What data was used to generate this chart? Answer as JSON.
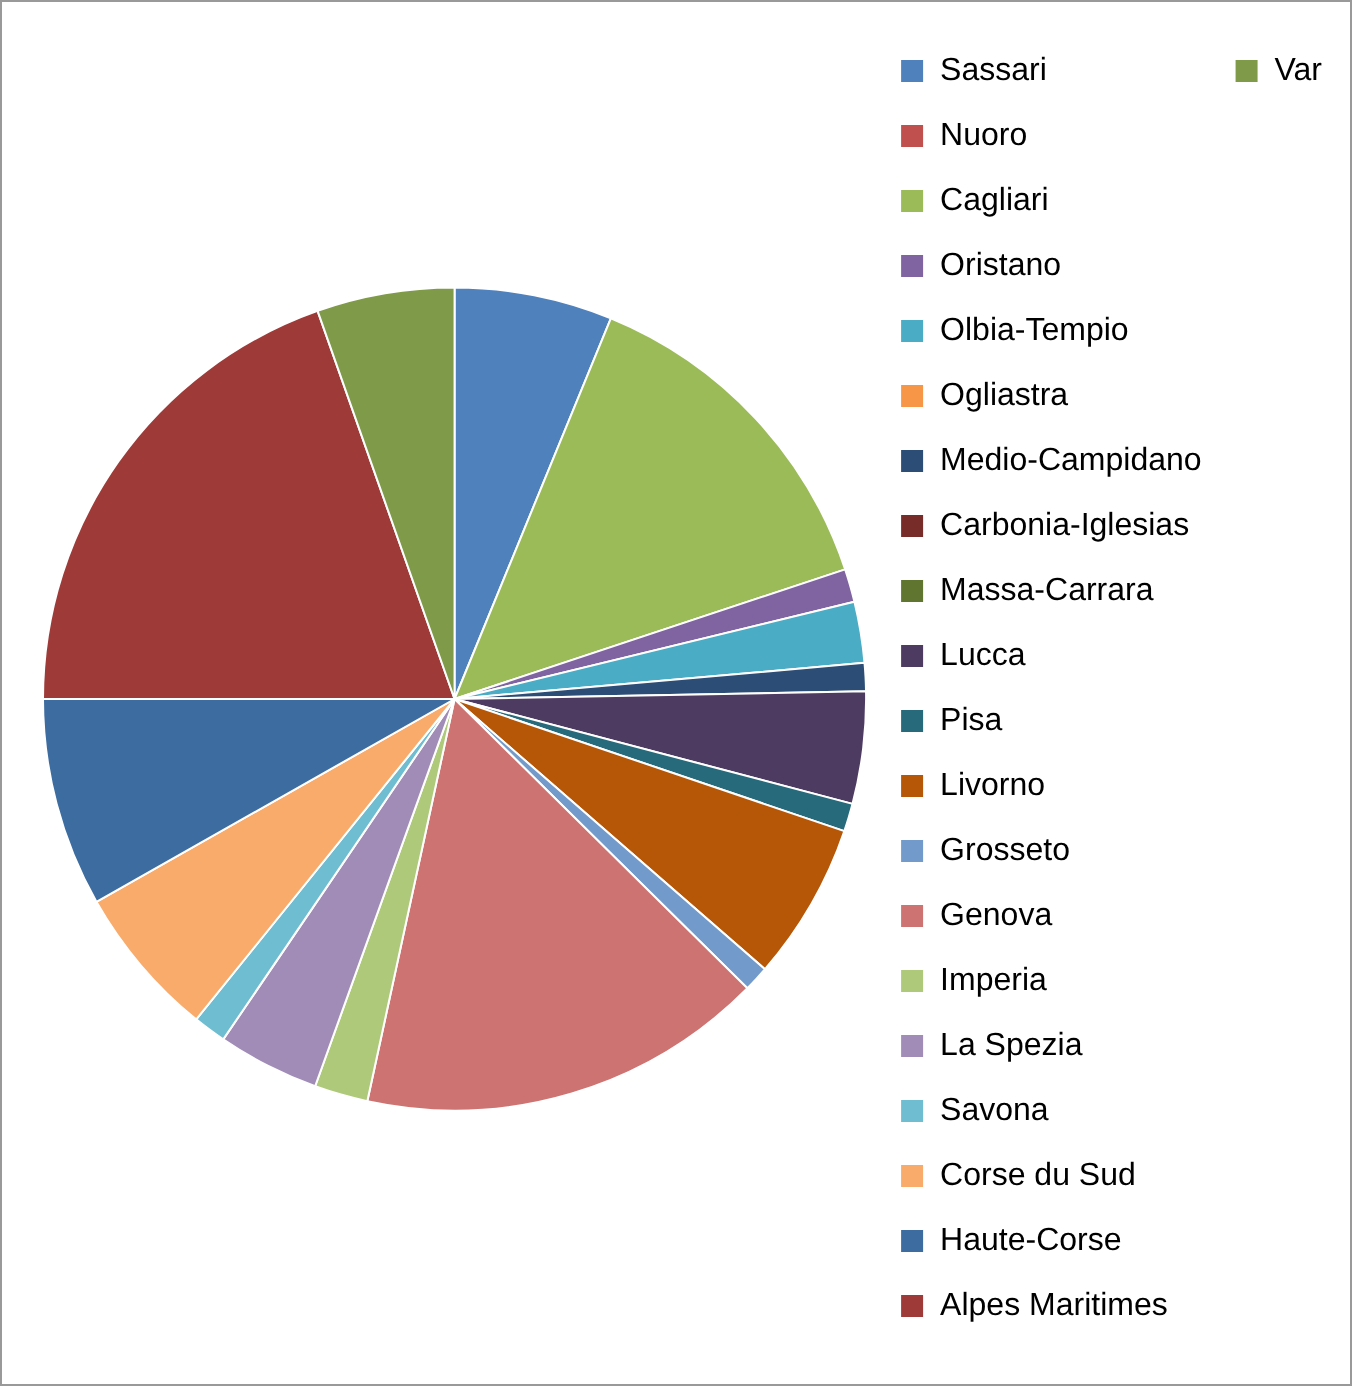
{
  "chart_data": {
    "type": "pie",
    "legend": "right",
    "categories": [
      "Sassari",
      "Nuoro",
      "Cagliari",
      "Oristano",
      "Olbia-Tempio",
      "Ogliastra",
      "Medio-Campidano",
      "Carbonia-Iglesias",
      "Massa-Carrara",
      "Lucca",
      "Pisa",
      "Livorno",
      "Grosseto",
      "Genova",
      "Imperia",
      "La Spezia",
      "Savona",
      "Corse du Sud",
      "Haute-Corse",
      "Alpes Maritimes",
      "Var"
    ],
    "values": [
      6.2,
      0,
      13.7,
      1.3,
      2.4,
      0,
      1.1,
      0,
      0,
      4.4,
      1.1,
      6.2,
      1.0,
      16.0,
      2.1,
      4.0,
      1.3,
      6.0,
      8.2,
      19.6,
      5.4
    ],
    "colors": [
      "#4f81bd",
      "#c0504d",
      "#9bbb59",
      "#8064a2",
      "#4bacc6",
      "#f79646",
      "#2c4d75",
      "#772c2a",
      "#5f7530",
      "#4d3b62",
      "#276a7c",
      "#b65708",
      "#729aca",
      "#cd7371",
      "#afc97a",
      "#a18cb7",
      "#6fbdd1",
      "#f9ab6b",
      "#3c6ca0",
      "#9e3b38",
      "#7f9a48"
    ]
  }
}
